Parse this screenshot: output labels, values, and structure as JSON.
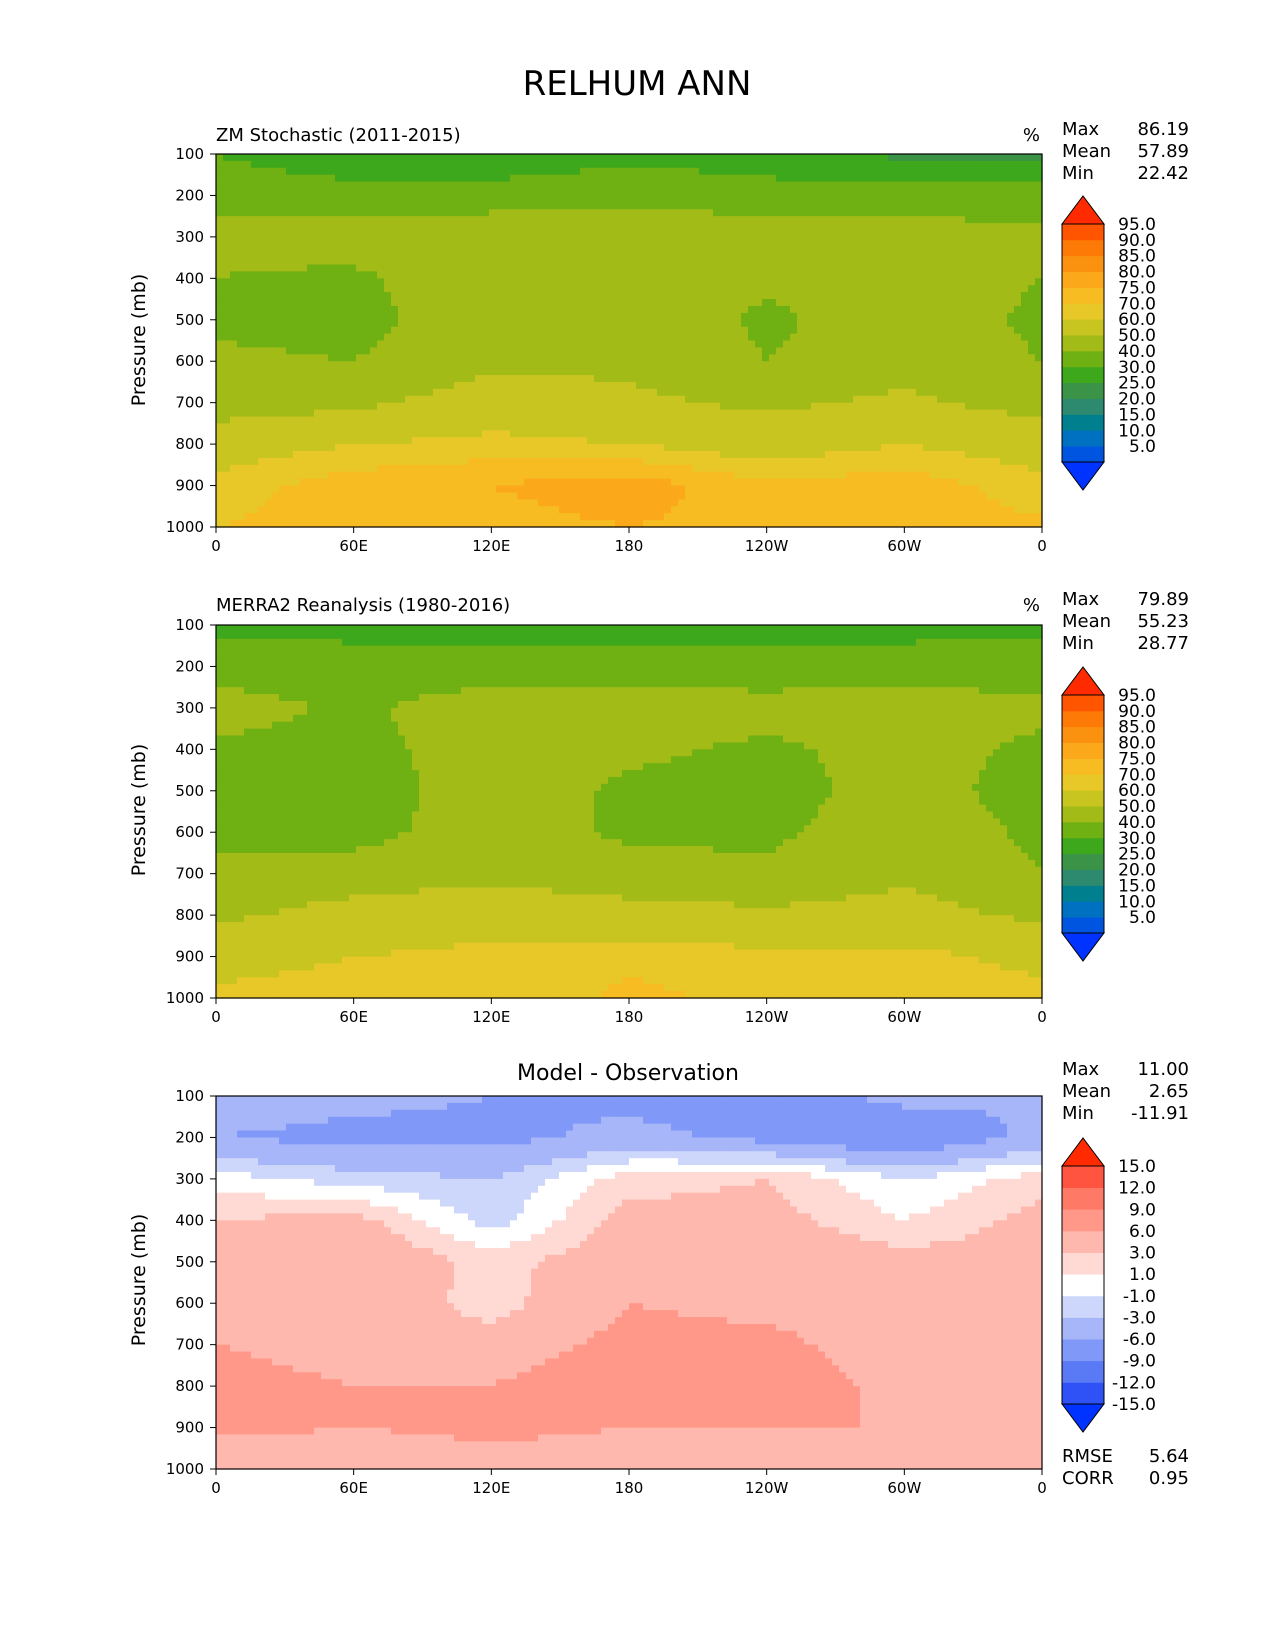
{
  "figure": {
    "title": "RELHUM ANN"
  },
  "x_ticks": [
    "0",
    "60E",
    "120E",
    "180",
    "120W",
    "60W",
    "0"
  ],
  "y_ticks": [
    "100",
    "200",
    "300",
    "400",
    "500",
    "600",
    "700",
    "800",
    "900",
    "1000"
  ],
  "ylabel": "Pressure (mb)",
  "stat_labels": {
    "max": "Max",
    "mean": "Mean",
    "min": "Min",
    "rmse": "RMSE",
    "corr": "CORR"
  },
  "colors": {
    "abs_levels": [
      "#0033ff",
      "#0055e0",
      "#0070c0",
      "#00808f",
      "#2d8a6e",
      "#3a9346",
      "#3ea81c",
      "#6fb012",
      "#a2bb17",
      "#c8c420",
      "#e8c828",
      "#f7bc22",
      "#fba81a",
      "#fb920f",
      "#fd7a06",
      "#ff5500",
      "#ff2a00"
    ],
    "diff_levels": [
      "#0033ff",
      "#2e52f5",
      "#5a79f5",
      "#8098f8",
      "#a6b6f8",
      "#cdd6fb",
      "#ffffff",
      "#ffd9d3",
      "#ffb8ad",
      "#ff9888",
      "#ff7a66",
      "#ff5540",
      "#ff2a00"
    ]
  },
  "panels": {
    "model": {
      "title": "ZM Stochastic (2011-2015)",
      "units": "%",
      "stats": {
        "max": "86.19",
        "mean": "57.89",
        "min": "22.42"
      },
      "colorbar_labels": [
        "95.0",
        "90.0",
        "85.0",
        "80.0",
        "75.0",
        "70.0",
        "60.0",
        "50.0",
        "40.0",
        "30.0",
        "25.0",
        "20.0",
        "15.0",
        "10.0",
        "5.0"
      ]
    },
    "obs": {
      "title": "MERRA2 Reanalysis (1980-2016)",
      "units": "%",
      "stats": {
        "max": "79.89",
        "mean": "55.23",
        "min": "28.77"
      },
      "colorbar_labels": [
        "95.0",
        "90.0",
        "85.0",
        "80.0",
        "75.0",
        "70.0",
        "60.0",
        "50.0",
        "40.0",
        "30.0",
        "25.0",
        "20.0",
        "15.0",
        "10.0",
        "5.0"
      ]
    },
    "diff": {
      "title": "Model - Observation",
      "stats": {
        "max": "11.00",
        "mean": "2.65",
        "min": "-11.91"
      },
      "colorbar_labels": [
        "15.0",
        "12.0",
        "9.0",
        "6.0",
        "3.0",
        "1.0",
        "-1.0",
        "-3.0",
        "-6.0",
        "-9.0",
        "-12.0",
        "-15.0"
      ],
      "rmse": "5.64",
      "corr": "0.95"
    }
  },
  "chart_data": [
    {
      "type": "heatmap",
      "title": "ZM Stochastic (2011-2015)",
      "ylabel": "Pressure (mb)",
      "xlabel": "",
      "x": [
        0,
        60,
        120,
        180,
        240,
        300,
        360
      ],
      "x_tick_labels": [
        "0",
        "60E",
        "120E",
        "180",
        "120W",
        "60W",
        "0"
      ],
      "y": [
        100,
        200,
        300,
        400,
        500,
        600,
        700,
        800,
        900,
        1000
      ],
      "y_reversed": true,
      "values": [
        [
          40,
          30,
          32,
          38,
          35,
          28,
          27
        ],
        [
          48,
          46,
          45,
          46,
          44,
          44,
          46
        ],
        [
          52,
          55,
          57,
          58,
          57,
          55,
          52
        ],
        [
          50,
          48,
          58,
          56,
          52,
          55,
          50
        ],
        [
          48,
          46,
          58,
          58,
          48,
          56,
          48
        ],
        [
          52,
          50,
          58,
          58,
          50,
          56,
          50
        ],
        [
          55,
          58,
          65,
          62,
          58,
          62,
          56
        ],
        [
          66,
          70,
          72,
          70,
          66,
          70,
          66
        ],
        [
          72,
          78,
          80,
          83,
          76,
          78,
          72
        ],
        [
          75,
          78,
          78,
          80,
          78,
          78,
          76
        ]
      ],
      "levels": [
        5,
        10,
        15,
        20,
        25,
        30,
        40,
        50,
        60,
        70,
        75,
        80,
        85,
        90,
        95
      ],
      "units": "%",
      "stats": {
        "max": 86.19,
        "mean": 57.89,
        "min": 22.42
      }
    },
    {
      "type": "heatmap",
      "title": "MERRA2 Reanalysis (1980-2016)",
      "ylabel": "Pressure (mb)",
      "xlabel": "",
      "x": [
        0,
        60,
        120,
        180,
        240,
        300,
        360
      ],
      "x_tick_labels": [
        "0",
        "60E",
        "120E",
        "180",
        "120W",
        "60W",
        "0"
      ],
      "y": [
        100,
        200,
        300,
        400,
        500,
        600,
        700,
        800,
        900,
        1000
      ],
      "y_reversed": true,
      "values": [
        [
          38,
          37,
          36,
          36,
          36,
          37,
          38
        ],
        [
          45,
          44,
          44,
          44,
          44,
          44,
          45
        ],
        [
          55,
          48,
          56,
          56,
          54,
          56,
          52
        ],
        [
          48,
          46,
          56,
          52,
          48,
          54,
          48
        ],
        [
          46,
          44,
          56,
          48,
          46,
          54,
          46
        ],
        [
          48,
          46,
          56,
          48,
          48,
          56,
          48
        ],
        [
          52,
          55,
          58,
          54,
          52,
          58,
          50
        ],
        [
          58,
          64,
          66,
          64,
          62,
          64,
          58
        ],
        [
          66,
          70,
          72,
          74,
          72,
          72,
          68
        ],
        [
          72,
          74,
          72,
          76,
          74,
          74,
          72
        ]
      ],
      "levels": [
        5,
        10,
        15,
        20,
        25,
        30,
        40,
        50,
        60,
        70,
        75,
        80,
        85,
        90,
        95
      ],
      "units": "%",
      "stats": {
        "max": 79.89,
        "mean": 55.23,
        "min": 28.77
      }
    },
    {
      "type": "heatmap",
      "title": "Model - Observation",
      "ylabel": "Pressure (mb)",
      "xlabel": "",
      "x": [
        0,
        60,
        120,
        180,
        240,
        300,
        360
      ],
      "x_tick_labels": [
        "0",
        "60E",
        "120E",
        "180",
        "120W",
        "60W",
        "0"
      ],
      "y": [
        100,
        200,
        300,
        400,
        500,
        600,
        700,
        800,
        900,
        1000
      ],
      "y_reversed": true,
      "values": [
        [
          -4,
          -5,
          -6,
          -7,
          -8,
          -5,
          -6
        ],
        [
          -6,
          -7,
          -7,
          -5,
          -7,
          -9,
          -5
        ],
        [
          0,
          -2,
          -3,
          2,
          3,
          -1,
          2
        ],
        [
          3,
          4,
          -2,
          4,
          4,
          1,
          4
        ],
        [
          4,
          6,
          2,
          5,
          5,
          4,
          4
        ],
        [
          5,
          5,
          2,
          6,
          5,
          4,
          5
        ],
        [
          6,
          5,
          4,
          7,
          7,
          4,
          5
        ],
        [
          7,
          6,
          6,
          9,
          8,
          5,
          6
        ],
        [
          7,
          6,
          7,
          6,
          6,
          6,
          6
        ],
        [
          3,
          3,
          4,
          4,
          4,
          4,
          3
        ]
      ],
      "levels": [
        -15,
        -12,
        -9,
        -6,
        -3,
        -1,
        1,
        3,
        6,
        9,
        12,
        15
      ],
      "stats": {
        "max": 11.0,
        "mean": 2.65,
        "min": -11.91,
        "rmse": 5.64,
        "corr": 0.95
      }
    }
  ]
}
